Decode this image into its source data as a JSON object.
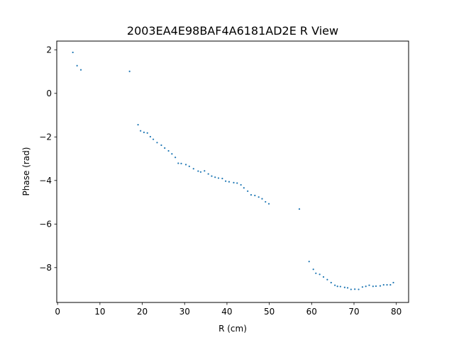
{
  "chart_data": {
    "type": "scatter",
    "title": "2003EA4E98BAF4A6181AD2E R View",
    "xlabel": "R (cm)",
    "ylabel": "Phase (rad)",
    "xlim": [
      -0.2,
      82.9
    ],
    "ylim": [
      -9.6,
      2.4
    ],
    "xticks": [
      0,
      10,
      20,
      30,
      40,
      50,
      60,
      70,
      80
    ],
    "yticks": [
      2,
      0,
      -2,
      -4,
      -6,
      -8
    ],
    "grid": false,
    "point_color": "#1f77b4",
    "series": [
      {
        "x": [
          3.6,
          4.6,
          5.5,
          17.0,
          19.0,
          19.6,
          20.4,
          21.2,
          21.9,
          22.6,
          23.5,
          24.5,
          25.3,
          26.2,
          27.0,
          27.8,
          28.5,
          29.2,
          30.3,
          31.1,
          32.1,
          33.2,
          33.8,
          34.7,
          35.6,
          36.4,
          37.2,
          38.0,
          38.9,
          39.7,
          40.5,
          41.6,
          42.4,
          43.3,
          44.0,
          44.9,
          45.7,
          46.6,
          47.5,
          48.3,
          49.1,
          49.9,
          57.1,
          59.4,
          60.4,
          61.0,
          61.9,
          62.8,
          63.7,
          64.6,
          65.5,
          66.1,
          66.8,
          67.8,
          68.5,
          69.3,
          70.2,
          71.1,
          72.0,
          72.8,
          73.6,
          74.5,
          75.2,
          76.2,
          77.0,
          77.8,
          78.6,
          79.3
        ],
        "y": [
          1.88,
          1.27,
          1.08,
          1.01,
          -1.44,
          -1.72,
          -1.79,
          -1.82,
          -1.99,
          -2.11,
          -2.26,
          -2.38,
          -2.51,
          -2.64,
          -2.78,
          -2.94,
          -3.21,
          -3.22,
          -3.27,
          -3.35,
          -3.46,
          -3.57,
          -3.61,
          -3.56,
          -3.7,
          -3.8,
          -3.85,
          -3.89,
          -3.91,
          -4.03,
          -4.06,
          -4.1,
          -4.12,
          -4.2,
          -4.34,
          -4.49,
          -4.66,
          -4.69,
          -4.76,
          -4.84,
          -4.98,
          -5.07,
          -5.31,
          -7.72,
          -8.08,
          -8.26,
          -8.31,
          -8.43,
          -8.55,
          -8.69,
          -8.81,
          -8.86,
          -8.87,
          -8.91,
          -8.93,
          -9.0,
          -8.99,
          -9.0,
          -8.89,
          -8.86,
          -8.81,
          -8.86,
          -8.85,
          -8.84,
          -8.79,
          -8.79,
          -8.79,
          -8.69
        ]
      }
    ]
  }
}
